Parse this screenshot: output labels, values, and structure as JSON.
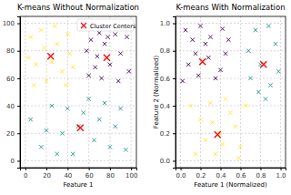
{
  "chart_data": [
    {
      "type": "scatter",
      "title": "K-means Without Normalization",
      "x_label": "Feature 1",
      "xlim": [
        -5,
        105
      ],
      "ylim": [
        -5,
        105
      ],
      "xticks": [
        0,
        20,
        40,
        60,
        80,
        100
      ],
      "yticks": [
        0,
        20,
        40,
        60,
        80,
        100
      ],
      "grid": true,
      "legend": "upper right",
      "series": [
        {
          "color": "#440154",
          "marker": "x",
          "x": [
            62,
            70,
            85,
            96,
            58,
            75,
            90,
            80,
            66,
            98,
            72,
            88,
            60,
            78,
            68
          ],
          "values": [
            88,
            93,
            92,
            90,
            80,
            85,
            78,
            70,
            68,
            65,
            60,
            58,
            62,
            90,
            76
          ]
        },
        {
          "color": "#fde725",
          "marker": "x",
          "x": [
            5,
            15,
            30,
            40,
            10,
            25,
            35,
            20,
            8,
            42,
            28,
            3,
            38,
            18,
            45
          ],
          "values": [
            90,
            95,
            85,
            92,
            70,
            72,
            65,
            58,
            55,
            78,
            98,
            75,
            55,
            82,
            68
          ]
        },
        {
          "color": "#21918c",
          "marker": "x",
          "x": [
            5,
            15,
            25,
            35,
            45,
            55,
            65,
            75,
            85,
            95,
            50,
            70,
            30,
            60,
            90,
            40,
            20,
            80
          ],
          "values": [
            30,
            10,
            40,
            20,
            5,
            35,
            15,
            42,
            25,
            8,
            25,
            30,
            5,
            45,
            38,
            38,
            22,
            10
          ]
        },
        {
          "name": "Cluster Centers",
          "color": "red",
          "marker": "x",
          "x": [
            77,
            24,
            52
          ],
          "values": [
            75,
            76,
            24
          ]
        }
      ]
    },
    {
      "type": "scatter",
      "title": "K-means With Normalization",
      "x_label": "Feature 1 (Normalized)",
      "y_label": "Feature 2 (Normalized)",
      "xlim": [
        -0.05,
        1.05
      ],
      "ylim": [
        -0.05,
        1.05
      ],
      "xticks": [
        {
          "value": 0,
          "label": "0.0"
        },
        0.2,
        0.4,
        0.6,
        0.8,
        {
          "value": 1,
          "label": "1.0"
        }
      ],
      "yticks": [
        {
          "value": 0,
          "label": "0.0"
        },
        0.2,
        0.4,
        0.6,
        0.8,
        {
          "value": 1,
          "label": "1.0"
        }
      ],
      "grid": true,
      "series": [
        {
          "color": "#440154",
          "marker": "x",
          "x": [
            0.05,
            0.12,
            0.2,
            0.3,
            0.42,
            0.08,
            0.18,
            0.28,
            0.35,
            0.45,
            0.02,
            0.25,
            0.4,
            0.15,
            0.48
          ],
          "values": [
            0.95,
            0.88,
            0.98,
            0.9,
            0.96,
            0.7,
            0.62,
            0.75,
            0.6,
            0.78,
            0.58,
            0.85,
            0.66,
            0.78,
            0.88
          ]
        },
        {
          "color": "#fde725",
          "marker": "x",
          "x": [
            0.1,
            0.2,
            0.3,
            0.4,
            0.5,
            0.6,
            0.35,
            0.25,
            0.45,
            0.55,
            0.65,
            0.15,
            0.42,
            0.58,
            0.32
          ],
          "values": [
            0.4,
            0.3,
            0.42,
            0.2,
            0.35,
            0.1,
            0.05,
            0.15,
            0.45,
            0.25,
            0.4,
            0.05,
            0.12,
            0.02,
            0.28
          ]
        },
        {
          "color": "#21918c",
          "marker": "x",
          "x": [
            0.7,
            0.8,
            0.9,
            0.95,
            0.75,
            0.85,
            0.68,
            0.98,
            0.88,
            0.78
          ],
          "values": [
            0.6,
            0.7,
            0.55,
            0.85,
            0.95,
            0.45,
            0.8,
            0.65,
            0.98,
            0.5
          ]
        },
        {
          "name": "Cluster Centers",
          "color": "red",
          "marker": "x",
          "x": [
            0.22,
            0.37,
            0.83
          ],
          "values": [
            0.72,
            0.19,
            0.7
          ]
        }
      ]
    }
  ]
}
